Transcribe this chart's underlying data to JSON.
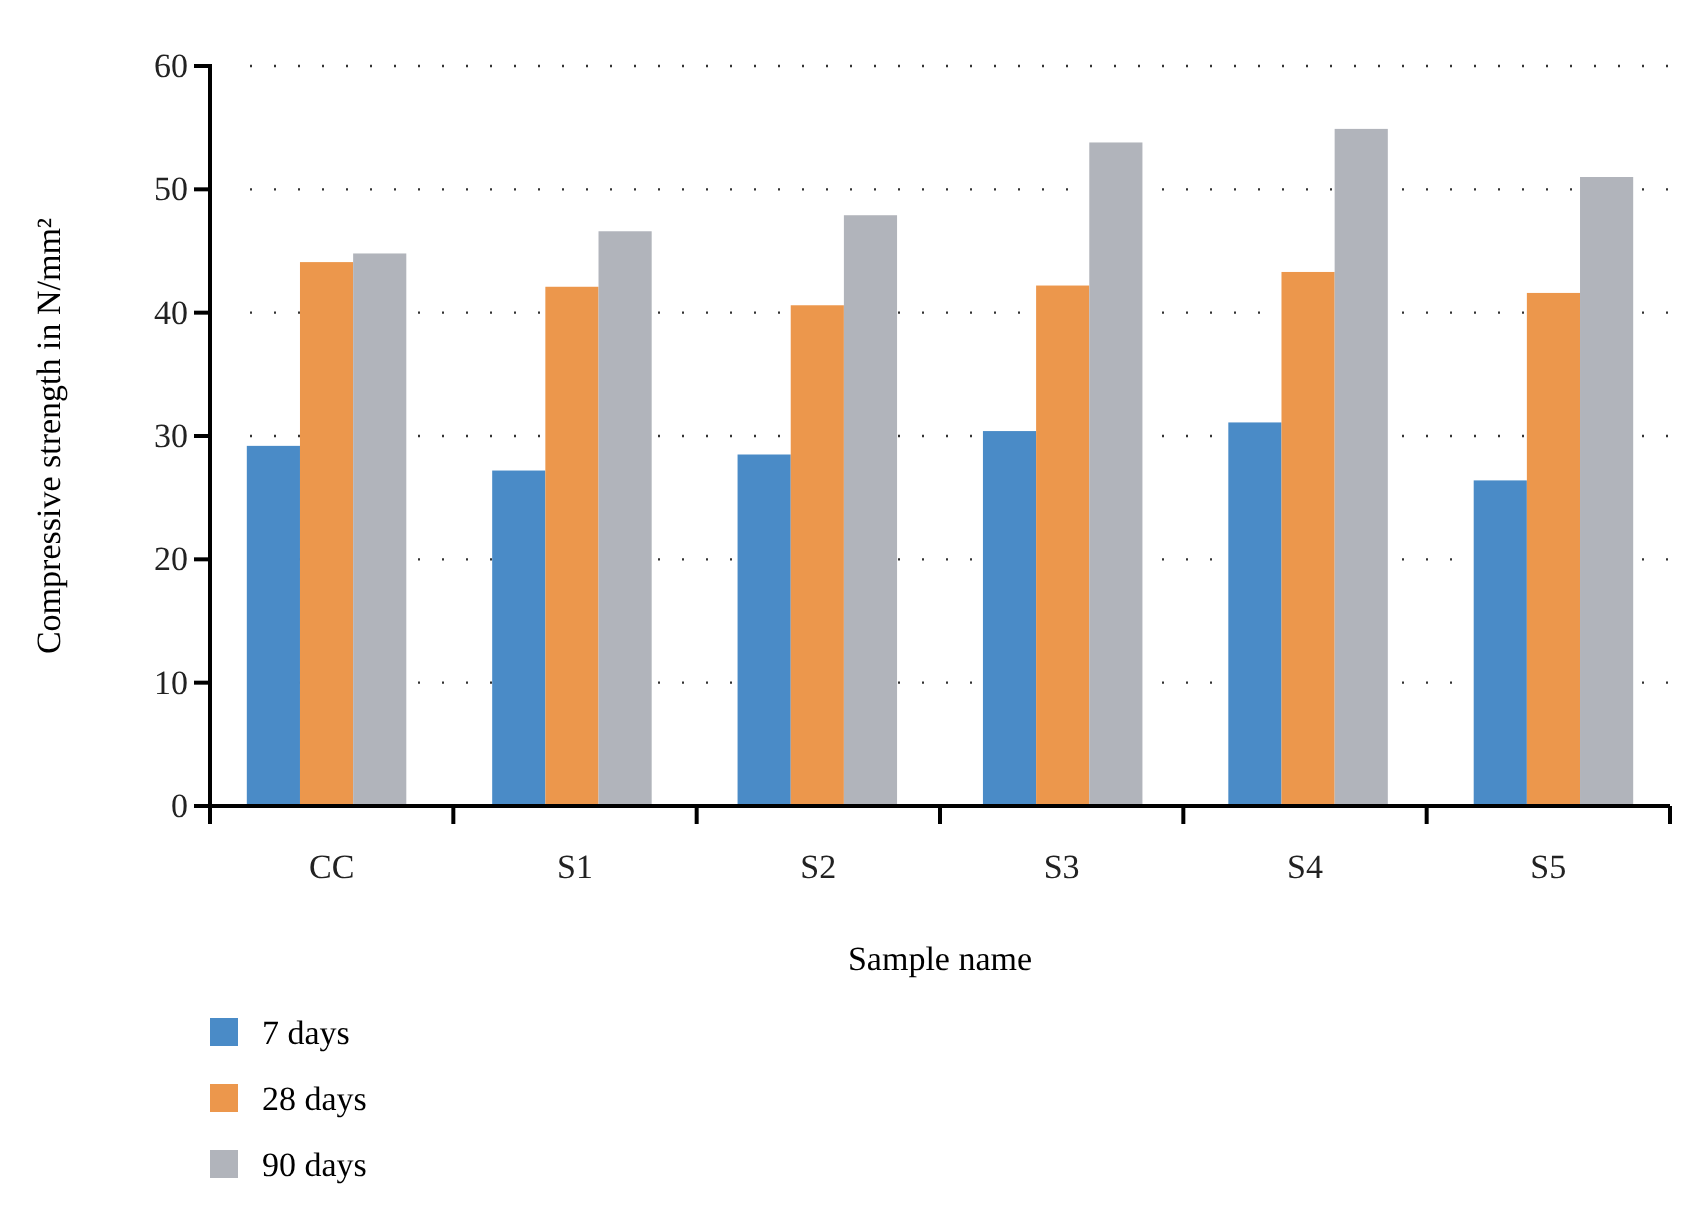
{
  "chart_data": {
    "type": "bar",
    "xlabel": "Sample name",
    "ylabel": "Compressive strength in N/mm²",
    "categories": [
      "CC",
      "S1",
      "S2",
      "S3",
      "S4",
      "S5"
    ],
    "series": [
      {
        "name": "7 days",
        "color": "#4a8bc7",
        "values": [
          29.2,
          27.2,
          28.5,
          30.4,
          31.1,
          26.4
        ]
      },
      {
        "name": "28 days",
        "color": "#ec974c",
        "values": [
          44.1,
          42.1,
          40.6,
          42.2,
          43.3,
          41.6
        ]
      },
      {
        "name": "90 days",
        "color": "#b1b4bb",
        "values": [
          44.8,
          46.6,
          47.9,
          53.8,
          54.9,
          51.0
        ]
      }
    ],
    "ylim": [
      0,
      60
    ],
    "yticks": [
      0,
      10,
      20,
      30,
      40,
      50,
      60
    ],
    "grid": "y",
    "legend": "bottom"
  }
}
